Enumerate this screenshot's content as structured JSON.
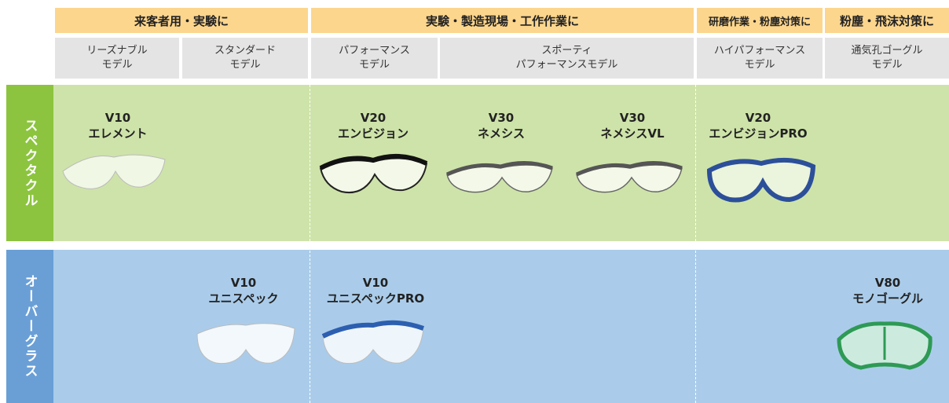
{
  "header_groups": [
    "来客者用・実験に",
    "実験・製造現場・工作作業に",
    "研磨作業・粉塵対策に",
    "粉塵・飛沫対策に"
  ],
  "sub_headers": [
    "リーズナブル\nモデル",
    "スタンダード\nモデル",
    "パフォーマンス\nモデル",
    "スポーティ\nパフォーマンスモデル",
    "ハイパフォーマンス\nモデル",
    "通気孔ゴーグル\nモデル"
  ],
  "rows": [
    {
      "label": "スペクタクル",
      "products": [
        {
          "model": "V10",
          "name": "エレメント"
        },
        {
          "model": "V20",
          "name": "エンビジョン"
        },
        {
          "model": "V30",
          "name": "ネメシス"
        },
        {
          "model": "V30",
          "name": "ネメシスVL"
        },
        {
          "model": "V20",
          "name": "エンビジョンPRO"
        }
      ]
    },
    {
      "label": "オーバーグラス",
      "products": [
        {
          "model": "V10",
          "name": "ユニスペック"
        },
        {
          "model": "V10",
          "name": "ユニスペックPRO"
        },
        {
          "model": "V80",
          "name": "モノゴーグル"
        }
      ]
    }
  ]
}
